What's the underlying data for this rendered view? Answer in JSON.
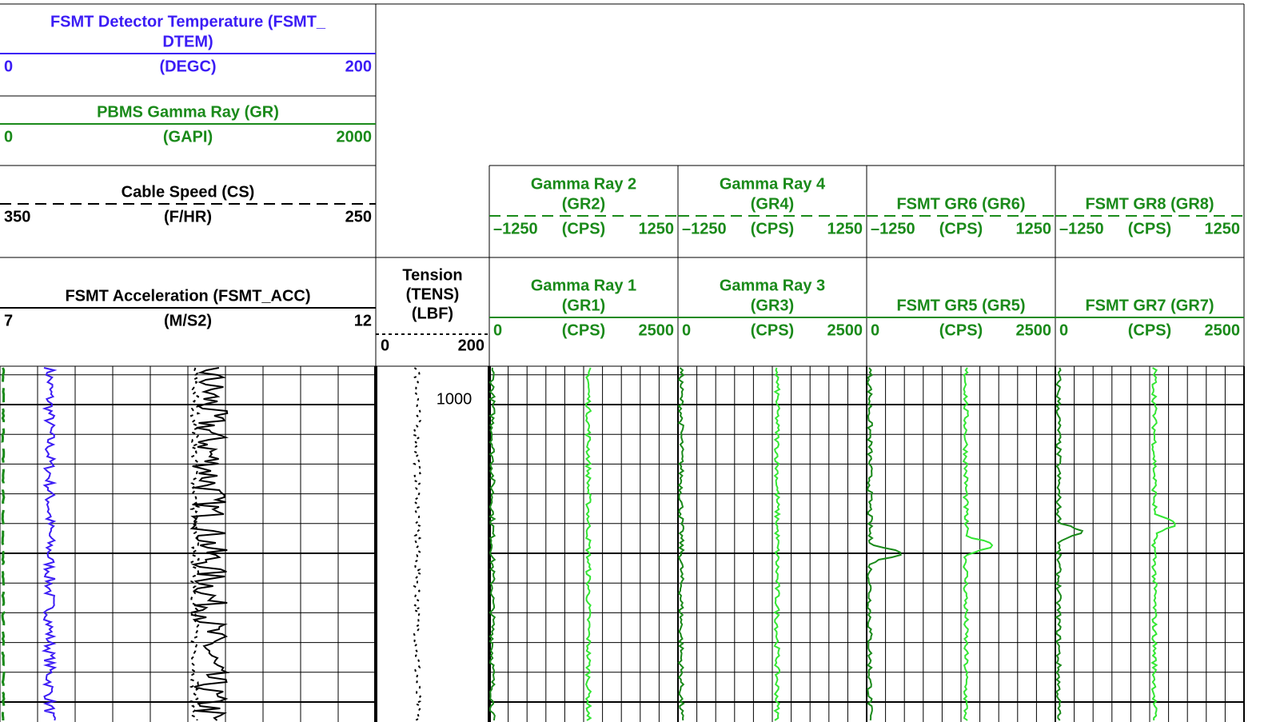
{
  "track1": [
    {
      "title": [
        "FSMT Detector Temperature (FSMT_",
        "DTEM)"
      ],
      "left": "0",
      "unit": "(DEGC)",
      "right": "200",
      "color": "#3b1cf5"
    },
    {
      "title": [
        "PBMS Gamma Ray (GR)"
      ],
      "left": "0",
      "unit": "(GAPI)",
      "right": "2000",
      "color": "#1a8a1a"
    },
    {
      "title": [
        "Cable Speed (CS)"
      ],
      "left": "350",
      "unit": "(F/HR)",
      "right": "250",
      "color": "#000000"
    },
    {
      "title": [
        "FSMT Acceleration (FSMT_ACC)"
      ],
      "left": "7",
      "unit": "(M/S2)",
      "right": "12",
      "color": "#000000"
    }
  ],
  "tension": {
    "title": [
      "Tension",
      "(TENS)",
      "(LBF)"
    ],
    "left": "0",
    "right": "200"
  },
  "depth": "1000",
  "gamma_tracks": [
    {
      "upper": {
        "title": [
          "Gamma Ray 2",
          "(GR2)"
        ],
        "left": "–1250",
        "unit": "(CPS)",
        "right": "1250"
      },
      "lower": {
        "title": [
          "Gamma Ray 1",
          "(GR1)"
        ],
        "left": "0",
        "unit": "(CPS)",
        "right": "2500"
      }
    },
    {
      "upper": {
        "title": [
          "Gamma Ray 4",
          "(GR4)"
        ],
        "left": "–1250",
        "unit": "(CPS)",
        "right": "1250"
      },
      "lower": {
        "title": [
          "Gamma Ray 3",
          "(GR3)"
        ],
        "left": "0",
        "unit": "(CPS)",
        "right": "2500"
      }
    },
    {
      "upper": {
        "title": [
          "FSMT GR6 (GR6)"
        ],
        "left": "–1250",
        "unit": "(CPS)",
        "right": "1250"
      },
      "lower": {
        "title": [
          "FSMT GR5 (GR5)"
        ],
        "left": "0",
        "unit": "(CPS)",
        "right": "2500"
      }
    },
    {
      "upper": {
        "title": [
          "FSMT GR8 (GR8)"
        ],
        "left": "–1250",
        "unit": "(CPS)",
        "right": "1250"
      },
      "lower": {
        "title": [
          "FSMT GR7 (GR7)"
        ],
        "left": "0",
        "unit": "(CPS)",
        "right": "2500"
      }
    }
  ]
}
